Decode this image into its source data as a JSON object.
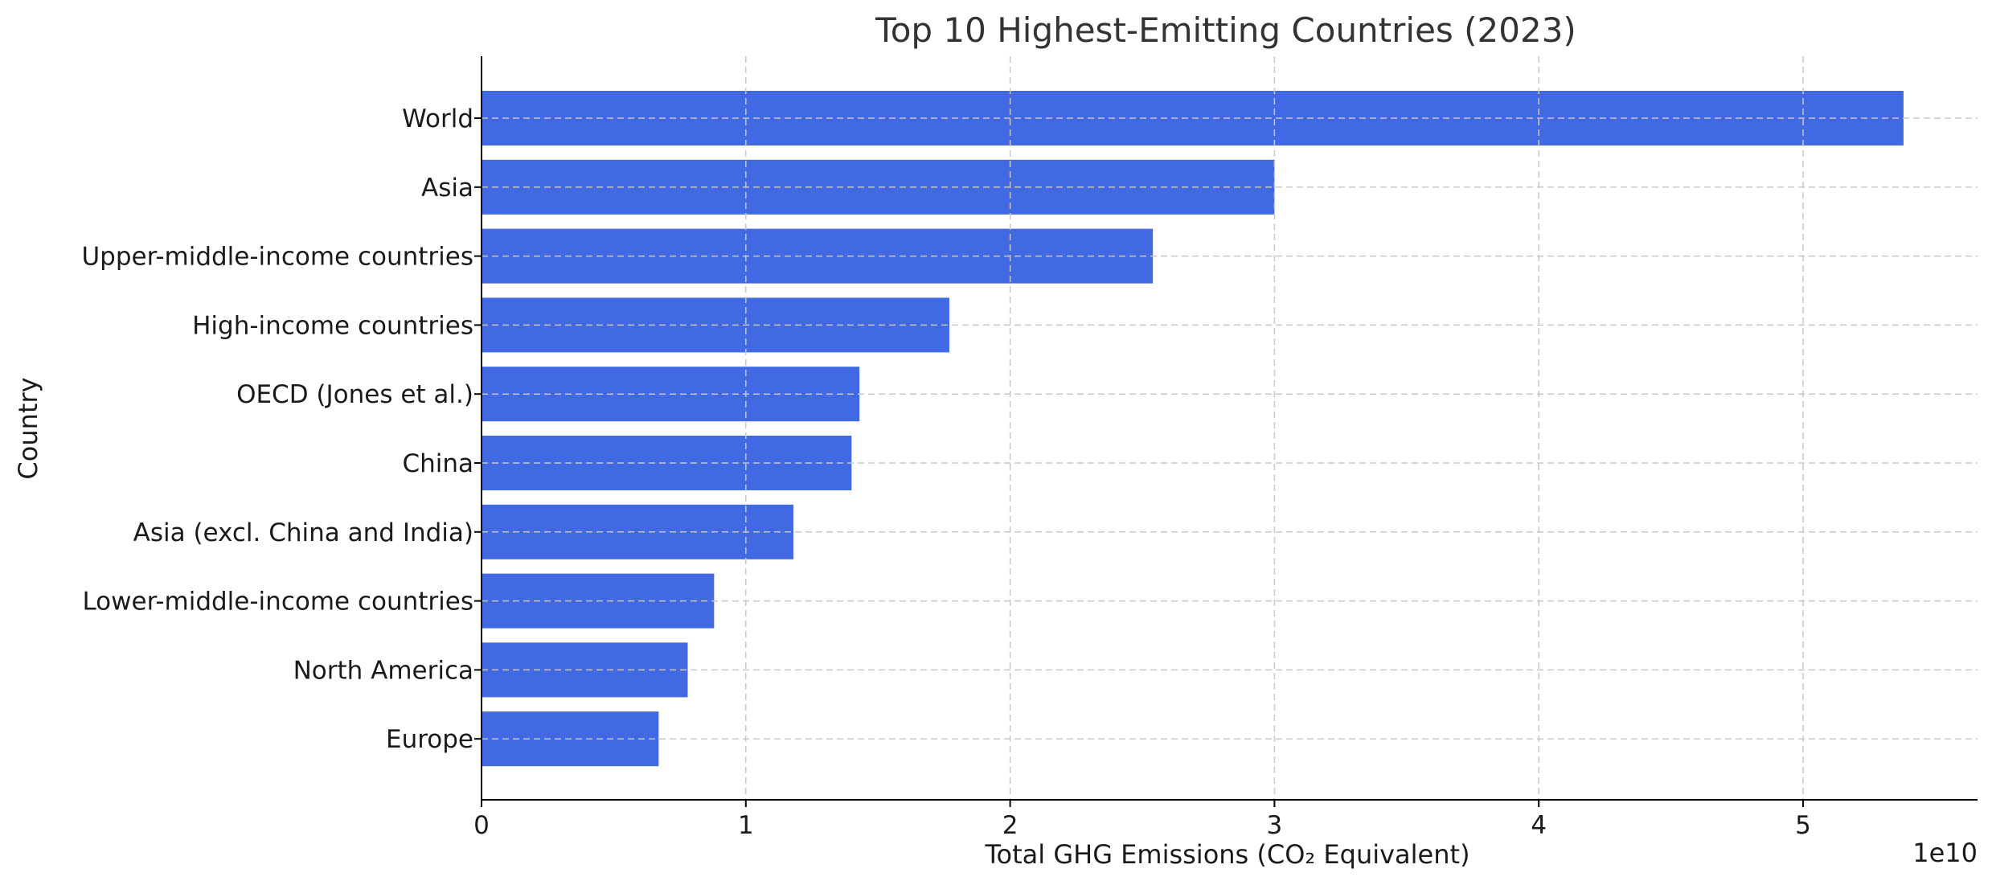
{
  "chart_data": {
    "type": "bar",
    "orientation": "horizontal",
    "title": "Top 10 Highest-Emitting Countries (2023)",
    "xlabel": "Total GHG Emissions (CO₂ Equivalent)",
    "ylabel": "Country",
    "offset_text": "1e10",
    "scale": 10000000000,
    "xlim": [
      0,
      5.66
    ],
    "xticks": [
      0,
      1,
      2,
      3,
      4,
      5
    ],
    "grid": true,
    "bar_color": "#4169E1",
    "categories": [
      "World",
      "Asia",
      "Upper-middle-income countries",
      "High-income countries",
      "OECD (Jones et al.)",
      "China",
      "Asia (excl. China and India)",
      "Lower-middle-income countries",
      "North America",
      "Europe"
    ],
    "values": [
      5.38,
      3.0,
      2.54,
      1.77,
      1.43,
      1.4,
      1.18,
      0.88,
      0.78,
      0.67
    ]
  }
}
